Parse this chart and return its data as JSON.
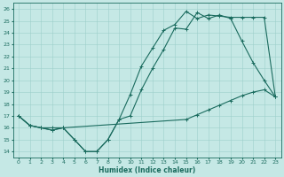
{
  "xlabel": "Humidex (Indice chaleur)",
  "xlim": [
    -0.5,
    23.5
  ],
  "ylim": [
    13.5,
    26.5
  ],
  "yticks": [
    14,
    15,
    16,
    17,
    18,
    19,
    20,
    21,
    22,
    23,
    24,
    25,
    26
  ],
  "xticks": [
    0,
    1,
    2,
    3,
    4,
    5,
    6,
    7,
    8,
    9,
    10,
    11,
    12,
    13,
    14,
    15,
    16,
    17,
    18,
    19,
    20,
    21,
    22,
    23
  ],
  "bg_color": "#c5e8e5",
  "line_color": "#1a6b5e",
  "grid_color": "#9dcfcb",
  "line1_x": [
    0,
    1,
    2,
    3,
    4,
    5,
    6,
    7,
    8,
    9,
    10,
    11,
    12,
    13,
    14,
    15,
    16,
    17,
    18,
    19,
    20,
    21,
    22,
    23
  ],
  "line1_y": [
    17.0,
    16.2,
    16.0,
    15.8,
    16.0,
    15.0,
    14.0,
    14.0,
    15.0,
    16.7,
    18.8,
    21.2,
    22.7,
    24.2,
    24.7,
    25.8,
    25.2,
    25.5,
    25.4,
    25.3,
    25.3,
    25.3,
    25.3,
    18.6
  ],
  "line2_x": [
    0,
    1,
    2,
    3,
    4,
    5,
    6,
    7,
    8,
    9,
    10,
    11,
    12,
    13,
    14,
    15,
    16,
    17,
    18,
    19,
    20,
    21,
    22,
    23
  ],
  "line2_y": [
    17.0,
    16.2,
    16.0,
    15.8,
    16.0,
    15.0,
    14.0,
    14.0,
    15.0,
    16.7,
    17.0,
    19.2,
    21.0,
    22.6,
    24.4,
    24.3,
    25.7,
    25.2,
    25.5,
    25.2,
    23.3,
    21.5,
    20.0,
    18.6
  ],
  "line3_x": [
    0,
    1,
    2,
    3,
    4,
    15,
    16,
    17,
    18,
    19,
    20,
    21,
    22,
    23
  ],
  "line3_y": [
    17.0,
    16.2,
    16.0,
    16.0,
    16.0,
    16.7,
    17.1,
    17.5,
    17.9,
    18.3,
    18.7,
    19.0,
    19.2,
    18.6
  ]
}
